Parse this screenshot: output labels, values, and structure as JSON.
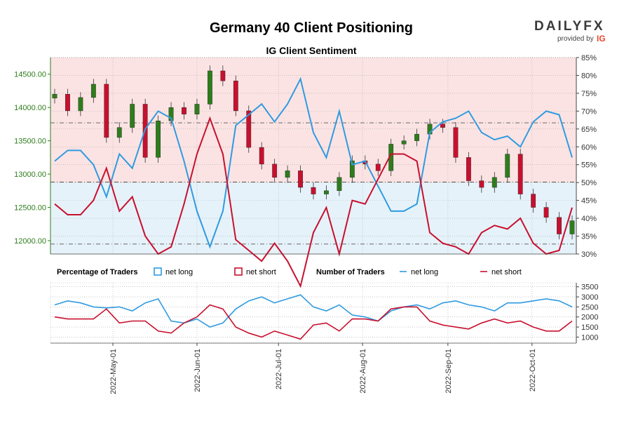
{
  "header": {
    "title": "Germany 40 Client Positioning",
    "subtitle": "IG Client Sentiment",
    "brand": "DAILYFX",
    "brand_parts": [
      "DAILY",
      "FX"
    ],
    "provided_by": "provided by",
    "provider": "IG"
  },
  "legend": {
    "pct_title": "Percentage of Traders",
    "num_title": "Number of Traders",
    "net_long": "net long",
    "net_short": "net short"
  },
  "colors": {
    "long": "#2f9be0",
    "short": "#c8102e",
    "long_bg": "#e6f2fa",
    "short_bg": "#fbe3e3",
    "price_axis": "#2e7d1b",
    "candle_up": "#2e7d1b",
    "candle_down": "#c8102e"
  },
  "chart_data": [
    {
      "type": "candlestick",
      "name": "price",
      "ylim": [
        11800,
        14750
      ],
      "yticks": [
        12000,
        12500,
        13000,
        13500,
        14000,
        14500
      ],
      "ytick_labels": [
        "12000.00",
        "12500.00",
        "13000.00",
        "13500.00",
        "14000.00",
        "14500.00"
      ],
      "reference_lines": [
        12880,
        13770,
        11950
      ],
      "x": [
        "04-14",
        "04-19",
        "04-22",
        "04-27",
        "05-03",
        "05-06",
        "05-11",
        "05-16",
        "05-19",
        "05-24",
        "05-27",
        "06-01",
        "06-06",
        "06-09",
        "06-14",
        "06-17",
        "06-22",
        "06-27",
        "06-30",
        "07-05",
        "07-08",
        "07-13",
        "07-18",
        "07-21",
        "07-26",
        "07-29",
        "08-03",
        "08-08",
        "08-11",
        "08-16",
        "08-19",
        "08-24",
        "08-29",
        "09-01",
        "09-06",
        "09-09",
        "09-14",
        "09-19",
        "09-22",
        "09-27",
        "09-30"
      ],
      "close": [
        14200,
        13950,
        14150,
        14350,
        13550,
        13700,
        14050,
        13250,
        13800,
        14000,
        13900,
        14050,
        14550,
        14400,
        13950,
        13400,
        13150,
        12950,
        13050,
        12800,
        12700,
        12750,
        12950,
        13200,
        13150,
        13050,
        13450,
        13500,
        13600,
        13750,
        13700,
        13250,
        12900,
        12800,
        12950,
        13300,
        12700,
        12500,
        12350,
        12100,
        12300
      ]
    },
    {
      "type": "line",
      "name": "percentage_of_traders",
      "ylim": [
        30,
        85
      ],
      "yticks": [
        30,
        35,
        40,
        45,
        50,
        55,
        60,
        65,
        70,
        75,
        80,
        85
      ],
      "ytick_labels": [
        "30%",
        "35%",
        "40%",
        "45%",
        "50%",
        "55%",
        "60%",
        "65%",
        "70%",
        "75%",
        "80%",
        "85%"
      ],
      "series": [
        {
          "name": "net long",
          "values": [
            56,
            59,
            59,
            55,
            46,
            58,
            54,
            65,
            70,
            68,
            56,
            42,
            32,
            42,
            66,
            69,
            72,
            67,
            72,
            79,
            64,
            57,
            70,
            55,
            56,
            49,
            42,
            42,
            44,
            64,
            67,
            68,
            70,
            64,
            62,
            63,
            60,
            67,
            70,
            69,
            57
          ]
        },
        {
          "name": "net short",
          "values": [
            44,
            41,
            41,
            45,
            54,
            42,
            46,
            35,
            30,
            32,
            44,
            58,
            68,
            58,
            34,
            31,
            28,
            33,
            28,
            21,
            36,
            43,
            30,
            45,
            44,
            51,
            58,
            58,
            56,
            36,
            33,
            32,
            30,
            36,
            38,
            37,
            40,
            33,
            30,
            31,
            43
          ]
        }
      ]
    },
    {
      "type": "line",
      "name": "number_of_traders",
      "ylim": [
        700,
        3700
      ],
      "yticks": [
        1000,
        1500,
        2000,
        2500,
        3000,
        3500
      ],
      "ytick_labels": [
        "1000",
        "1500",
        "2000",
        "2500",
        "3000",
        "3500"
      ],
      "series": [
        {
          "name": "net long",
          "values": [
            2600,
            2800,
            2700,
            2500,
            2450,
            2500,
            2300,
            2700,
            2900,
            1800,
            1700,
            1900,
            1500,
            1700,
            2400,
            2800,
            3000,
            2700,
            2900,
            3100,
            2500,
            2300,
            2600,
            2100,
            2000,
            1800,
            2300,
            2500,
            2600,
            2400,
            2700,
            2800,
            2600,
            2500,
            2300,
            2700,
            2700,
            2800,
            2900,
            2800,
            2500
          ]
        },
        {
          "name": "net short",
          "values": [
            2000,
            1900,
            1900,
            1900,
            2400,
            1700,
            1800,
            1800,
            1300,
            1200,
            1700,
            2000,
            2600,
            2400,
            1500,
            1200,
            1000,
            1300,
            1100,
            900,
            1600,
            1700,
            1300,
            1900,
            1900,
            1800,
            2400,
            2500,
            2500,
            1800,
            1600,
            1500,
            1400,
            1700,
            1900,
            1700,
            1800,
            1500,
            1300,
            1300,
            1800
          ]
        }
      ]
    }
  ],
  "x_axis": {
    "ticks": [
      "2022-May-01",
      "2022-Jun-01",
      "2022-Jul-01",
      "2022-Aug-01",
      "2022-Sep-01",
      "2022-Oct-01"
    ],
    "tick_index": [
      4.5,
      11,
      17.3,
      23.8,
      30.4,
      36.9
    ]
  }
}
